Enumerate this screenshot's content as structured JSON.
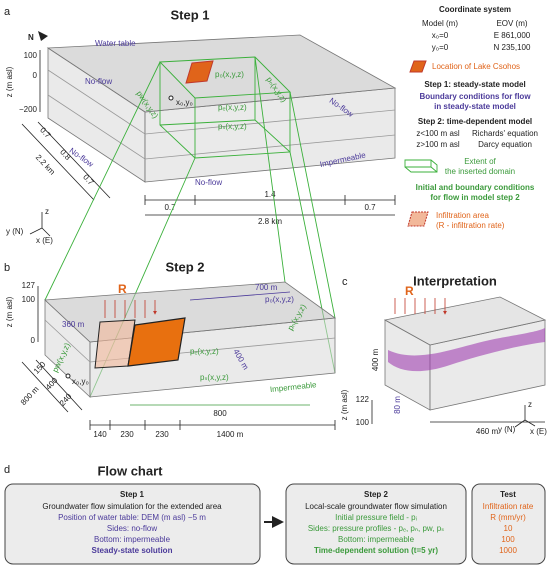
{
  "panel_a": {
    "label": "a",
    "title": "Step 1",
    "north": "N",
    "water_table": "Water table",
    "no_flow": [
      "No-flow",
      "No-flow",
      "No-flow",
      "No-flow"
    ],
    "impermeable": "Impermeable",
    "z_label": "z (m asl)",
    "z_ticks": [
      "100",
      "0",
      "−200"
    ],
    "origin": "x₀,y₀",
    "pressures": [
      "p₀(x,y,z)",
      "pₑ(x,y,z)",
      "pₛ(x,y,z)",
      "pₙ(x,y,z)",
      "pw(x,y,z)"
    ],
    "side_dims": [
      "0.7",
      "0.8",
      "0.7"
    ],
    "side_total": "2.2 km",
    "bottom_dims": [
      "0.7",
      "1.4",
      "0.7"
    ],
    "bottom_total": "2.8 km",
    "axes": [
      "z",
      "y (N)",
      "x (E)"
    ]
  },
  "legend": {
    "title": "Coordinate system",
    "col_model": "Model (m)",
    "col_eov": "EOV (m)",
    "rows": [
      [
        "x₀=0",
        "E 861,000"
      ],
      [
        "y₀=0",
        "N 235,100"
      ]
    ],
    "lake": "Location of Lake Csohos",
    "step1": "Step 1: steady-state model",
    "step1_bc": [
      "Boundary conditions for flow",
      "in steady-state model"
    ],
    "step2": "Step 2: time-dependent model",
    "equations": [
      [
        "z<100 m asl",
        "Richards' equation"
      ],
      [
        "z>100 m asl",
        "Darcy equation"
      ]
    ],
    "extent": [
      "Extent of",
      "the inserted domain"
    ],
    "step2_bc": [
      "Initial and boundary conditions",
      "for flow in model step 2"
    ],
    "infiltration": [
      "Infiltration area",
      "(R - infiltration rate)"
    ]
  },
  "panel_b": {
    "label": "b",
    "title": "Step 2",
    "z_label": "z (m asl)",
    "z_ticks": [
      "127",
      "100",
      "0"
    ],
    "R": "R",
    "dims_top": [
      "360 m",
      "700 m",
      "400 m"
    ],
    "pressures": [
      "p₀(x,y,z)",
      "pₑ(x,y,z)",
      "pₙ(x,y,z)",
      "pₛ(x,y,z)",
      "pw(x,y,z)"
    ],
    "origin": "x₀,y₀",
    "impermeable": "Impermeable",
    "side_dims": [
      "150",
      "400",
      "240"
    ],
    "side_total": "800 m",
    "bottom_dims": [
      "140",
      "230",
      "230"
    ],
    "bottom_total": "1400 m",
    "inner_length": "800"
  },
  "panel_c": {
    "label": "c",
    "title": "Interpretation",
    "R": "R",
    "width": "400 m",
    "z_label": "z (m asl)",
    "z_ticks": [
      "122",
      "100"
    ],
    "thickness": "80 m",
    "length": "460 m",
    "axes": [
      "z",
      "y (N)",
      "x (E)"
    ]
  },
  "flow_chart": {
    "label": "d",
    "title": "Flow chart",
    "step1": {
      "title": "Step 1",
      "lines": [
        "Groundwater flow simulation for the extended area",
        "Position of water table: DEM (m asl) −5 m",
        "Sides: no-flow",
        "Bottom: impermeable",
        "Steady-state solution"
      ]
    },
    "step2": {
      "title": "Step 2",
      "lines": [
        "Local-scale groundwater flow simulation",
        "Initial pressure field - pᵢ",
        "Sides: pressure profiles - pₑ, pₙ, pw, pₛ",
        "Bottom: impermeable",
        "Time-dependent solution (t=5 yr)"
      ]
    },
    "test": {
      "title": "Test",
      "lines": [
        "Infiltration rate",
        "R (mm/yr)",
        "10",
        "100",
        "1000"
      ]
    }
  }
}
